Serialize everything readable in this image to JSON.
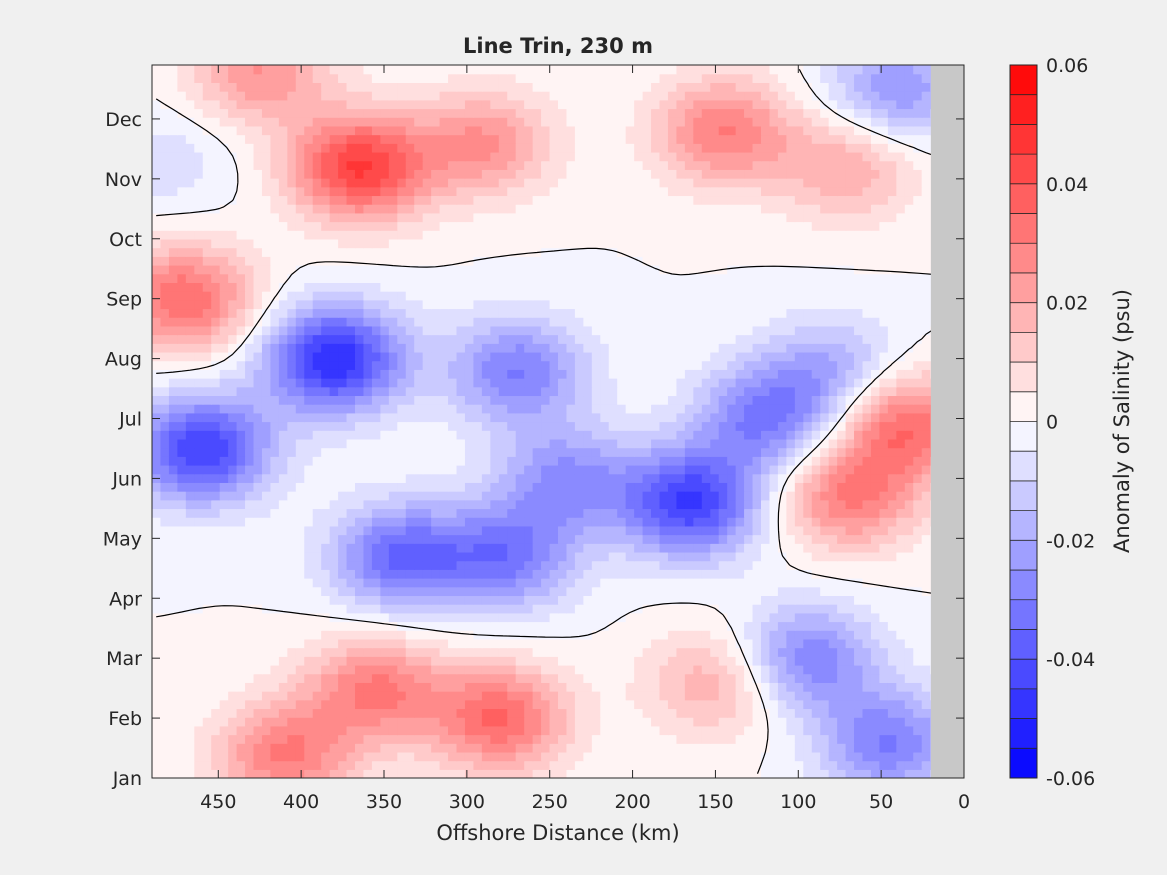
{
  "chart_data": {
    "type": "heatmap",
    "title": "Line Trin, 230 m",
    "xlabel": "Offshore Distance (km)",
    "ylabel": "",
    "xlim": [
      490,
      0
    ],
    "x_reversed": true,
    "x_ticks": [
      450,
      400,
      350,
      300,
      250,
      200,
      150,
      100,
      50,
      0
    ],
    "x_tick_labels": [
      "450",
      "400",
      "350",
      "300",
      "250",
      "200",
      "150",
      "100",
      "50",
      "0"
    ],
    "y_ticks": [
      0,
      1,
      2,
      3,
      4,
      5,
      6,
      7,
      8,
      9,
      10,
      11
    ],
    "y_tick_labels": [
      "Jan",
      "Feb",
      "Mar",
      "Apr",
      "May",
      "Jun",
      "Jul",
      "Aug",
      "Sep",
      "Oct",
      "Nov",
      "Dec"
    ],
    "ylim": [
      0,
      11.9
    ],
    "no_data_x_range": [
      20,
      0
    ],
    "no_data_color": "#c8c8c8",
    "colorbar": {
      "label": "Anomaly of Salinity (psu)",
      "range": [
        -0.06,
        0.06
      ],
      "step": 0.005,
      "ticks": [
        0.06,
        0.04,
        0.02,
        0,
        -0.02,
        -0.04,
        -0.06
      ],
      "tick_labels": [
        "0.06",
        "0.04",
        "0.02",
        "0",
        "-0.02",
        "-0.04",
        "-0.06"
      ],
      "neg_color": "#0000ff",
      "pos_color": "#ff0000",
      "mid_color": "#ffffff"
    },
    "contour_level": 0,
    "anomaly_features_psu": [
      {
        "x": 365,
        "y": 10.2,
        "value": 0.045
      },
      {
        "x": 470,
        "y": 8.0,
        "value": 0.035
      },
      {
        "x": 480,
        "y": 10.3,
        "value": -0.008
      },
      {
        "x": 425,
        "y": 11.8,
        "value": 0.025
      },
      {
        "x": 290,
        "y": 10.6,
        "value": 0.025
      },
      {
        "x": 145,
        "y": 10.8,
        "value": 0.03
      },
      {
        "x": 70,
        "y": 10.2,
        "value": 0.02
      },
      {
        "x": 380,
        "y": 7.0,
        "value": -0.05
      },
      {
        "x": 460,
        "y": 5.5,
        "value": -0.045
      },
      {
        "x": 270,
        "y": 6.8,
        "value": -0.03
      },
      {
        "x": 330,
        "y": 5.3,
        "value": 0.0
      },
      {
        "x": 165,
        "y": 4.6,
        "value": -0.045
      },
      {
        "x": 240,
        "y": 5.0,
        "value": -0.025
      },
      {
        "x": 340,
        "y": 3.7,
        "value": -0.035
      },
      {
        "x": 275,
        "y": 3.7,
        "value": -0.03
      },
      {
        "x": 120,
        "y": 6.0,
        "value": -0.03
      },
      {
        "x": 80,
        "y": 6.8,
        "value": -0.02
      },
      {
        "x": 35,
        "y": 5.9,
        "value": 0.035
      },
      {
        "x": 70,
        "y": 4.7,
        "value": 0.03
      },
      {
        "x": 40,
        "y": 11.5,
        "value": -0.025
      },
      {
        "x": 410,
        "y": 0.4,
        "value": 0.03
      },
      {
        "x": 280,
        "y": 1.0,
        "value": 0.035
      },
      {
        "x": 355,
        "y": 1.5,
        "value": 0.03
      },
      {
        "x": 150,
        "y": 1.6,
        "value": 0.02
      },
      {
        "x": 95,
        "y": 2.0,
        "value": -0.03
      },
      {
        "x": 45,
        "y": 0.6,
        "value": -0.03
      }
    ]
  }
}
